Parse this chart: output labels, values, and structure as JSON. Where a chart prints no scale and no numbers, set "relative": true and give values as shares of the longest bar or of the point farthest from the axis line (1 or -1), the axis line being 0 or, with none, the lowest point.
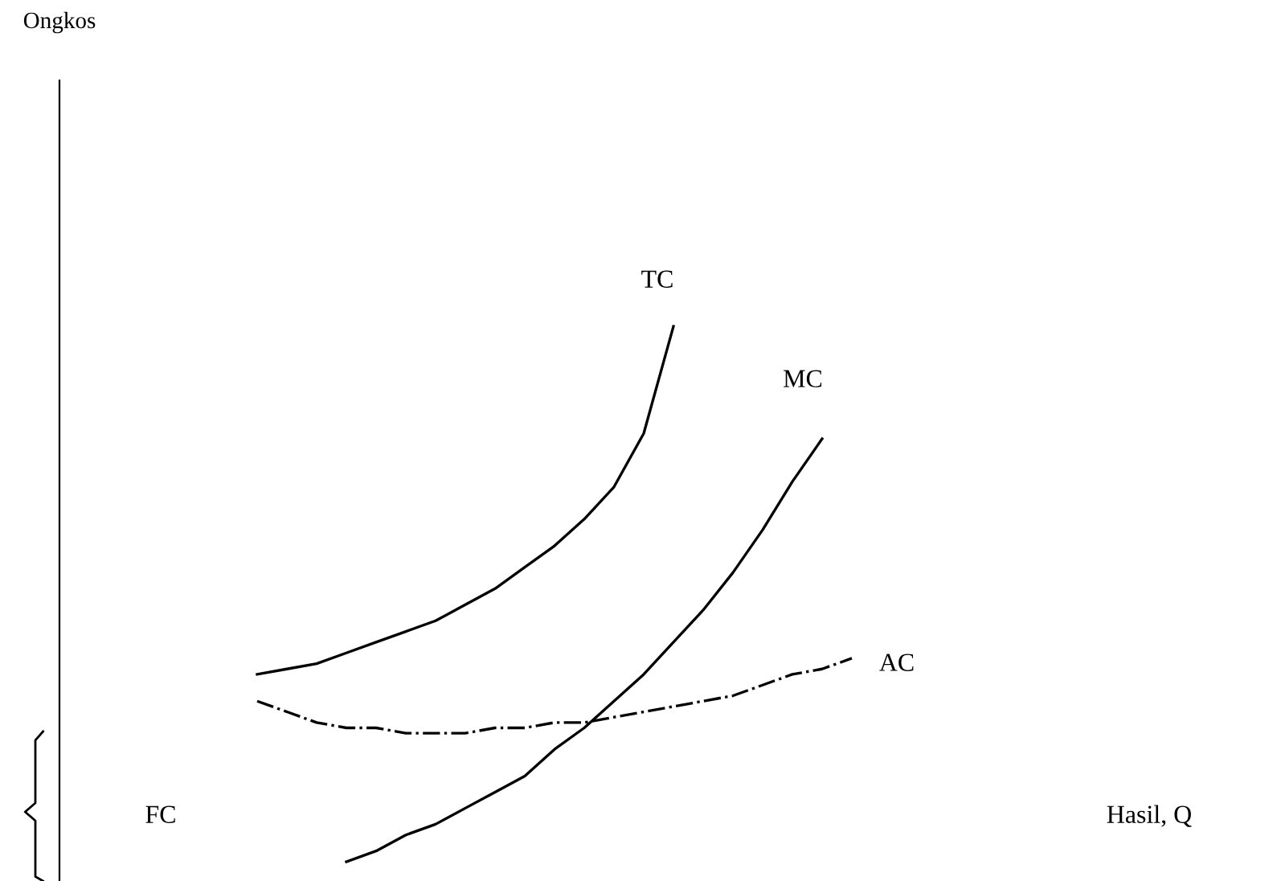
{
  "chart_data": {
    "type": "line",
    "relative": true,
    "categories": [
      null,
      null,
      null,
      null,
      null,
      null,
      null,
      null,
      null,
      null,
      null,
      null,
      null,
      null,
      null,
      null,
      null,
      null,
      null,
      null,
      null
    ],
    "series": [
      {
        "name": "TC",
        "color": "#000000",
        "line_style": "solid",
        "values": [
          0.35,
          0.36,
          0.37,
          0.39,
          0.41,
          0.43,
          0.45,
          0.48,
          0.51,
          0.55,
          0.59,
          0.64,
          0.7,
          0.8,
          1.0,
          null,
          null,
          null,
          null,
          null,
          null
        ]
      },
      {
        "name": "MC",
        "color": "#000000",
        "line_style": "solid",
        "values": [
          null,
          null,
          null,
          0.0,
          0.02,
          0.05,
          0.07,
          0.1,
          0.13,
          0.16,
          0.21,
          0.25,
          0.3,
          0.35,
          0.41,
          0.47,
          0.54,
          0.62,
          0.71,
          0.79,
          null
        ]
      },
      {
        "name": "AC",
        "color": "#000000",
        "line_style": "dashdot",
        "values": [
          0.3,
          0.28,
          0.26,
          0.25,
          0.25,
          0.24,
          0.24,
          0.24,
          0.25,
          0.25,
          0.26,
          0.26,
          0.27,
          0.28,
          0.29,
          0.3,
          0.31,
          0.33,
          0.35,
          0.36,
          0.38
        ]
      }
    ],
    "annotations": [
      "Ongkos",
      "Hasil, Q",
      "FC"
    ]
  }
}
